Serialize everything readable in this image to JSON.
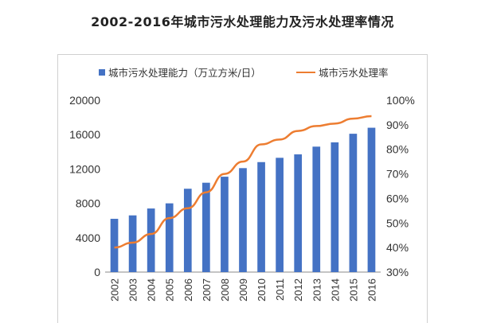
{
  "title": "2002-2016年城市污水处理能力及污水处理率情况",
  "chart_data": {
    "type": "bar",
    "categories": [
      "2002",
      "2003",
      "2004",
      "2005",
      "2006",
      "2007",
      "2008",
      "2009",
      "2010",
      "2011",
      "2012",
      "2013",
      "2014",
      "2015",
      "2016"
    ],
    "series": [
      {
        "name": "城市污水处理能力（万立方米/日）",
        "type": "bar",
        "axis": "left",
        "color": "#4472C4",
        "values": [
          6200,
          6600,
          7400,
          8000,
          9700,
          10400,
          11100,
          12100,
          12800,
          13300,
          13700,
          14600,
          15100,
          16100,
          16800
        ]
      },
      {
        "name": "城市污水处理率",
        "type": "line",
        "axis": "right",
        "color": "#ED7D31",
        "values": [
          40.0,
          42.0,
          45.5,
          52.0,
          56.0,
          62.5,
          70.0,
          75.0,
          82.0,
          84.0,
          87.5,
          89.5,
          90.5,
          92.5,
          93.5
        ]
      }
    ],
    "y_left": {
      "min": 0,
      "max": 20000,
      "ticks": [
        0,
        4000,
        8000,
        12000,
        16000,
        20000
      ]
    },
    "y_right": {
      "min": 30,
      "max": 100,
      "ticks": [
        "30%",
        "40%",
        "50%",
        "60%",
        "70%",
        "80%",
        "90%",
        "100%"
      ]
    },
    "grid": false,
    "legend_position": "top"
  }
}
